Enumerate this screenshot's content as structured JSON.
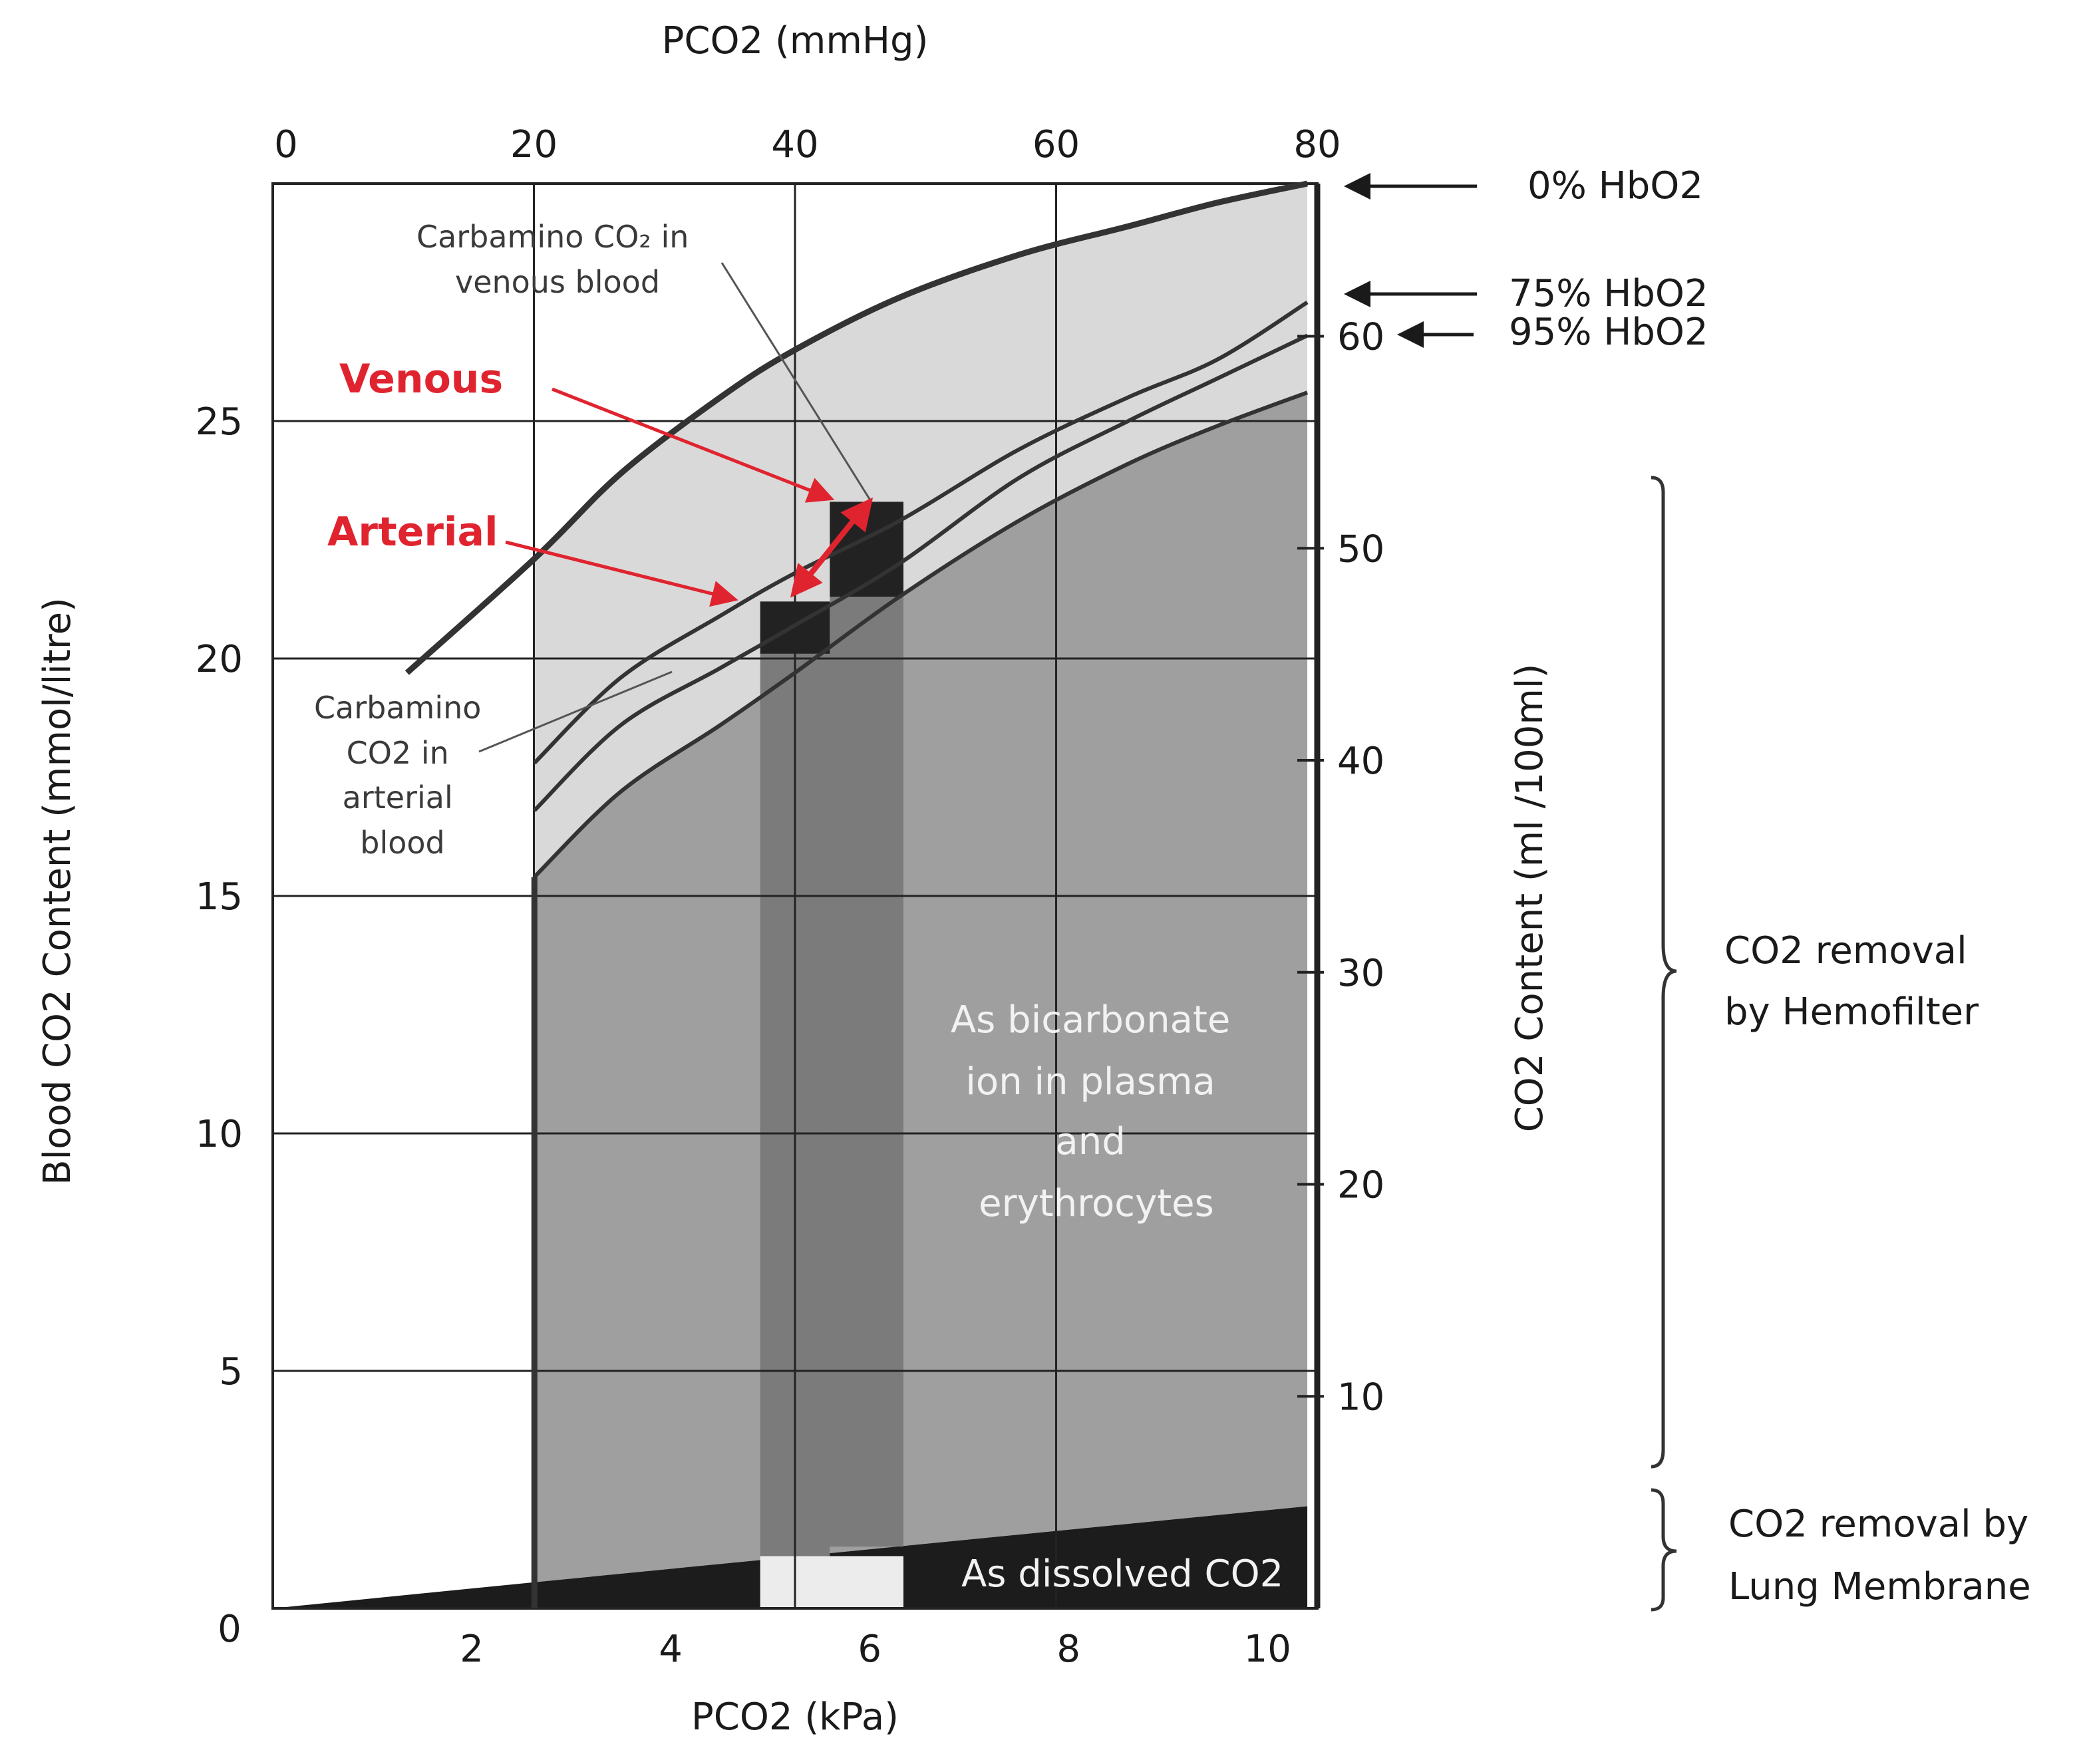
{
  "chart_data": {
    "type": "area",
    "title": "",
    "xlabel": "PCO2 (kPa)",
    "x2label": "PCO2 (mmHg)",
    "ylabel": "Blood CO2 Content (mmol/litre)",
    "y2label": "CO2 Content (ml  /100ml)",
    "xlim": [
      0,
      10.5
    ],
    "ylim": [
      0,
      30
    ],
    "x2lim": [
      0,
      80
    ],
    "x_ticks": [
      "2",
      "4",
      "6",
      "8",
      "10"
    ],
    "x_tick_values": [
      2,
      4,
      6,
      8,
      10
    ],
    "x_origin_label": "0",
    "x2_ticks": [
      "0",
      "20",
      "40",
      "60",
      "80"
    ],
    "x2_tick_values": [
      0,
      20,
      40,
      60,
      80
    ],
    "y_ticks": [
      "5",
      "10",
      "15",
      "20",
      "25"
    ],
    "y_tick_values": [
      5,
      10,
      15,
      20,
      25
    ],
    "y2_ticks": [
      "10",
      "20",
      "30",
      "40",
      "50",
      "60"
    ],
    "y2_tick_values": [
      10,
      20,
      30,
      40,
      50,
      60
    ],
    "grid": true,
    "series": [
      {
        "name": "0% HbO2",
        "x": [
          1.35,
          2.63,
          3.5,
          4.5,
          5.25,
          6.3,
          7.5,
          8.6,
          9.5,
          10.4
        ],
        "y": [
          19.7,
          22.1,
          23.9,
          25.5,
          26.5,
          27.6,
          28.5,
          29.1,
          29.6,
          30.0
        ]
      },
      {
        "name": "75% HbO2",
        "x": [
          2.63,
          3.5,
          4.5,
          5.25,
          6.3,
          7.5,
          8.6,
          9.5,
          10.4
        ],
        "y": [
          17.8,
          19.6,
          20.9,
          21.8,
          22.9,
          24.4,
          25.5,
          26.3,
          27.5
        ]
      },
      {
        "name": "95% HbO2",
        "x": [
          2.63,
          3.5,
          4.5,
          5.25,
          6.3,
          7.5,
          8.6,
          9.5,
          10.4
        ],
        "y": [
          16.8,
          18.6,
          19.8,
          20.7,
          22.0,
          23.8,
          25.0,
          25.9,
          26.8
        ]
      },
      {
        "name": "bicarbonate",
        "x": [
          2.63,
          3.5,
          4.5,
          5.25,
          6.3,
          7.5,
          8.6,
          9.5,
          10.4
        ],
        "y": [
          15.4,
          17.2,
          18.6,
          19.7,
          21.3,
          22.9,
          24.1,
          24.9,
          25.6
        ]
      },
      {
        "name": "dissolved",
        "x": [
          0,
          2.63,
          10.4
        ],
        "y": [
          0,
          0.55,
          2.15
        ]
      }
    ],
    "arterial_box": {
      "x": [
        4.9,
        5.6
      ],
      "y": [
        20.1,
        21.2
      ]
    },
    "venous_box": {
      "x": [
        5.6,
        6.34
      ],
      "y": [
        21.3,
        23.3
      ]
    },
    "arterial_column": {
      "x": [
        4.9,
        5.6
      ],
      "y": [
        1.1,
        20.1
      ]
    },
    "venous_column": {
      "x": [
        5.6,
        6.34
      ],
      "y": [
        1.3,
        21.3
      ]
    },
    "arterial_point": {
      "x": 5.2,
      "y": 21.3
    },
    "venous_point": {
      "x": 6.05,
      "y": 23.4
    },
    "annotations": {
      "venous": "Venous",
      "arterial": "Arterial",
      "carbamino_venous": [
        "Carbamino CO₂ in",
        "venous blood"
      ],
      "carbamino_arterial": [
        "Carbamino",
        "CO2 in",
        "arterial",
        "blood"
      ],
      "bicarbonate": [
        "As bicarbonate",
        "ion in plasma",
        "and",
        "erythrocytes"
      ],
      "dissolved": "As dissolved CO2",
      "hb0": "0% HbO2",
      "hb75": "75% HbO2",
      "hb95": "95% HbO2",
      "hemofilter": [
        "CO2 removal",
        "by Hemofilter"
      ],
      "lung": [
        "CO2 removal by",
        "Lung Membrane"
      ]
    }
  },
  "colors": {
    "light_region": "#d9d9d9",
    "mid_region": "#b0b0b0",
    "bicarb_region": "#9f9f9f",
    "column": "#7b7b7b",
    "box": "#222222",
    "dissolved": "#1c1c1c",
    "notch": "#ececec",
    "red": "#e0242f"
  }
}
